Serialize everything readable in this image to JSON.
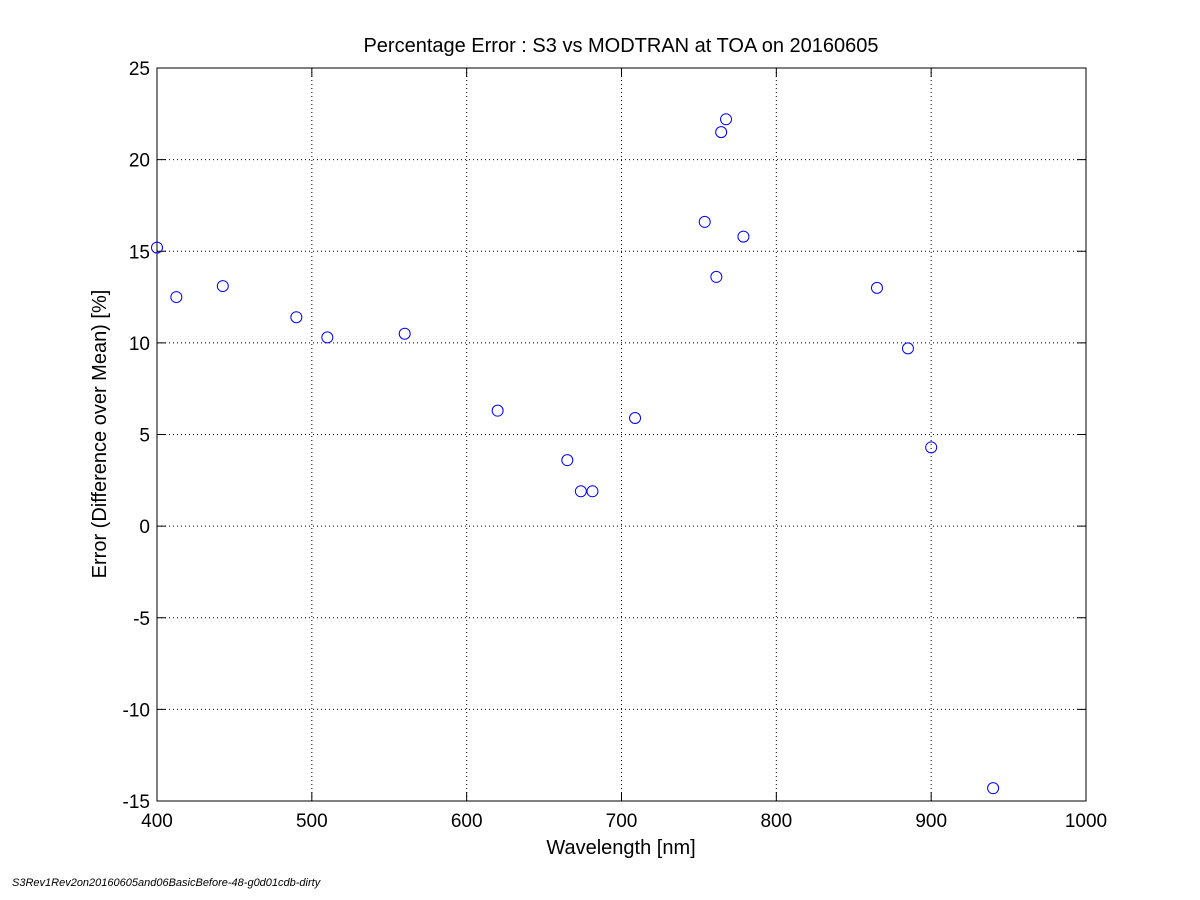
{
  "chart_data": {
    "type": "scatter",
    "title": "Percentage Error : S3 vs MODTRAN at TOA on 20160605",
    "xlabel": "Wavelength [nm]",
    "ylabel": "Error (Difference over Mean) [%]",
    "xlim": [
      400,
      1000
    ],
    "ylim": [
      -15,
      25
    ],
    "xticks": [
      400,
      500,
      600,
      700,
      800,
      900,
      1000
    ],
    "yticks": [
      -15,
      -10,
      -5,
      0,
      5,
      10,
      15,
      20,
      25
    ],
    "xtick_labels": [
      "400",
      "500",
      "600",
      "700",
      "800",
      "900",
      "1000"
    ],
    "ytick_labels": [
      "-15",
      "-10",
      "-5",
      "0",
      "5",
      "10",
      "15",
      "20",
      "25"
    ],
    "grid": true,
    "marker": "circle",
    "marker_color": "#0000ff",
    "series": [
      {
        "points": [
          {
            "x": 400,
            "y": 15.2
          },
          {
            "x": 412.5,
            "y": 12.5
          },
          {
            "x": 442.5,
            "y": 13.1
          },
          {
            "x": 490,
            "y": 11.4
          },
          {
            "x": 510,
            "y": 10.3
          },
          {
            "x": 560,
            "y": 10.5
          },
          {
            "x": 620,
            "y": 6.3
          },
          {
            "x": 665,
            "y": 3.6
          },
          {
            "x": 673.75,
            "y": 1.9
          },
          {
            "x": 681.25,
            "y": 1.9
          },
          {
            "x": 708.75,
            "y": 5.9
          },
          {
            "x": 753.75,
            "y": 16.6
          },
          {
            "x": 761.25,
            "y": 13.6
          },
          {
            "x": 764.375,
            "y": 21.5
          },
          {
            "x": 767.5,
            "y": 22.2
          },
          {
            "x": 778.75,
            "y": 15.8
          },
          {
            "x": 865,
            "y": 13.0
          },
          {
            "x": 885,
            "y": 9.7
          },
          {
            "x": 900,
            "y": 4.3
          },
          {
            "x": 940,
            "y": -14.3
          }
        ]
      }
    ]
  },
  "footnote": "S3Rev1Rev2on20160605and06BasicBefore-48-g0d01cdb-dirty"
}
